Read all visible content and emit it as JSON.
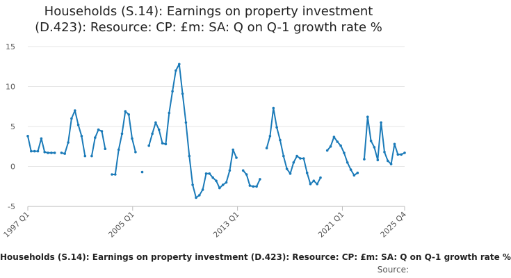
{
  "title_line1": "Households (S.14): Earnings on property investment",
  "title_line2": "(D.423): Resource: CP: £m: SA: Q on Q-1 growth rate %",
  "caption": "Households (S.14): Earnings on property investment (D.423): Resource: CP: £m: SA: Q on Q-1 growth rate %",
  "source_label": "Source:",
  "colors": {
    "line": "#1a7ab8",
    "grid": "#e6e6e6",
    "text": "#555555"
  },
  "chart_data": {
    "type": "line",
    "x_start": "1997 Q1",
    "x_end": "2025 Q4",
    "ylim": [
      -5,
      15
    ],
    "yticks": [
      -5,
      0,
      5,
      10,
      15
    ],
    "xticks": [
      "1997 Q1",
      "2005 Q1",
      "2013 Q1",
      "2021 Q1",
      "2025 Q4"
    ],
    "grid": true,
    "series": [
      {
        "values": [
          3.8,
          1.9,
          1.9,
          1.9,
          3.5,
          1.8,
          1.7,
          1.7,
          1.7,
          null,
          1.7,
          1.6,
          3.0,
          6.0,
          7.0,
          5.2,
          3.8,
          1.3,
          null,
          1.3,
          3.6,
          4.6,
          4.4,
          2.2,
          null,
          -1.0,
          -1.0,
          2.1,
          4.1,
          6.9,
          6.5,
          3.5,
          1.8,
          null,
          -0.7,
          null,
          2.6,
          4.1,
          5.5,
          4.6,
          2.9,
          2.8,
          6.7,
          9.4,
          12.0,
          12.8,
          9.1,
          5.5,
          1.3,
          -2.3,
          -3.9,
          -3.6,
          -2.9,
          -0.9,
          -0.9,
          -1.4,
          -1.8,
          -2.7,
          -2.3,
          -2.0,
          -0.5,
          2.1,
          1.1,
          null,
          -0.5,
          -1.0,
          -2.4,
          -2.5,
          -2.5,
          -1.6,
          null,
          2.3,
          3.8,
          7.3,
          4.9,
          3.3,
          1.3,
          -0.3,
          -0.9,
          0.5,
          1.3,
          1.0,
          1.0,
          -0.8,
          -2.2,
          -1.8,
          -2.2,
          -1.4,
          null,
          2.0,
          2.5,
          3.7,
          3.1,
          2.6,
          1.7,
          0.5,
          -0.4,
          -1.1,
          -0.8,
          null,
          0.9,
          6.2,
          3.2,
          2.4,
          0.8,
          5.5,
          1.8,
          0.7,
          0.3,
          2.8,
          1.5,
          1.5,
          1.7
        ]
      }
    ]
  }
}
